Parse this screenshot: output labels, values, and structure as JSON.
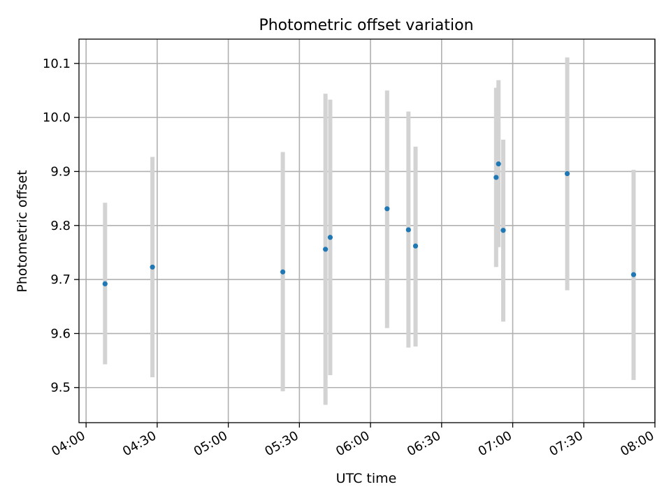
{
  "chart_data": {
    "type": "scatter",
    "title": "Photometric offset variation",
    "xlabel": "UTC time",
    "ylabel": "Photometric offset",
    "grid": true,
    "legend": "none",
    "x_ticks": [
      "04:00",
      "04:30",
      "05:00",
      "05:30",
      "06:00",
      "06:30",
      "07:00",
      "07:30",
      "08:00"
    ],
    "y_ticks": [
      "9.5",
      "9.6",
      "9.7",
      "9.8",
      "9.9",
      "10.0",
      "10.1"
    ],
    "xlim": [
      "03:57",
      "08:00"
    ],
    "ylim": [
      9.435,
      10.145
    ],
    "point_color": "#1f77b4",
    "errorbar_color": "#d3d3d3",
    "series": [
      {
        "x": [
          "04:08",
          "04:28",
          "05:23",
          "05:41",
          "05:43",
          "06:07",
          "06:16",
          "06:19",
          "06:53",
          "06:54",
          "06:56",
          "07:23",
          "07:51"
        ],
        "y": [
          9.692,
          9.723,
          9.714,
          9.756,
          9.778,
          9.831,
          9.792,
          9.762,
          9.889,
          9.914,
          9.791,
          9.896,
          9.709
        ],
        "yerr_low": [
          9.543,
          9.519,
          9.493,
          9.468,
          9.523,
          9.61,
          9.574,
          9.576,
          9.723,
          9.76,
          9.622,
          9.68,
          9.514
        ],
        "yerr_high": [
          9.842,
          9.927,
          9.936,
          10.044,
          10.033,
          10.05,
          10.011,
          9.946,
          10.055,
          10.069,
          9.959,
          10.111,
          9.903
        ]
      }
    ]
  }
}
